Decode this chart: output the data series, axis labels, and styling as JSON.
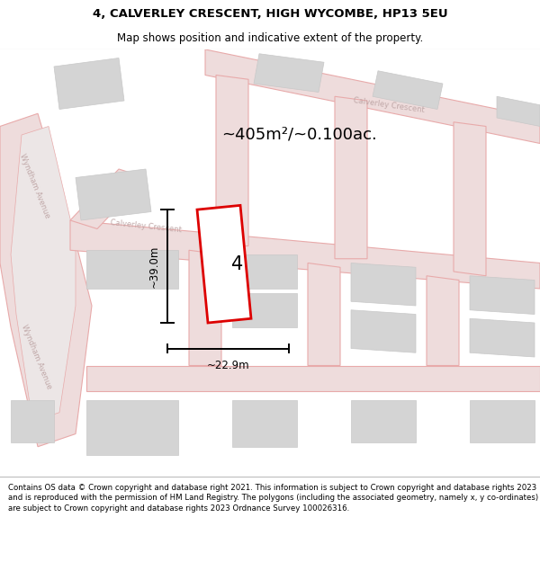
{
  "title_line1": "4, CALVERLEY CRESCENT, HIGH WYCOMBE, HP13 5EU",
  "title_line2": "Map shows position and indicative extent of the property.",
  "area_text": "~405m²/~0.100ac.",
  "dim_width": "~22.9m",
  "dim_height": "~39.0m",
  "property_number": "4",
  "map_bg": "#f2f0f0",
  "footer_text": "Contains OS data © Crown copyright and database right 2021. This information is subject to Crown copyright and database rights 2023 and is reproduced with the permission of HM Land Registry. The polygons (including the associated geometry, namely x, y co-ordinates) are subject to Crown copyright and database rights 2023 Ordnance Survey 100026316.",
  "road_color": "#e8aaaa",
  "road_fill": "#eedcdc",
  "building_color": "#c8c8c8",
  "building_fill": "#d4d4d4",
  "highlight_color": "#dd0000",
  "street_label_color": "#c0a8a8"
}
